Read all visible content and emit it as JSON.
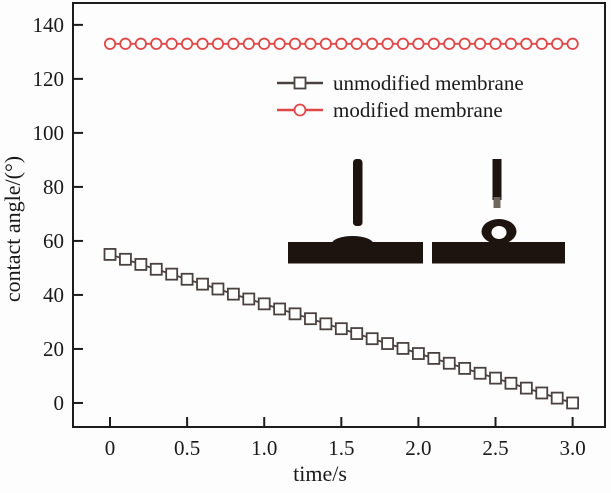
{
  "chart_data": {
    "type": "line",
    "title": "",
    "xlabel": "time/s",
    "ylabel": "contact angle/(°)",
    "xlim": [
      -0.24,
      3.21
    ],
    "ylim": [
      -8.9,
      148.1
    ],
    "grid": false,
    "legend_position": "inside-upper-right",
    "xticks": [
      0,
      0.5,
      1.0,
      1.5,
      2.0,
      2.5,
      3.0
    ],
    "xtick_labels": [
      "0",
      "0.5",
      "1.0",
      "1.5",
      "2.0",
      "2.5",
      "3.0"
    ],
    "yticks": [
      0,
      20,
      40,
      60,
      80,
      100,
      120,
      140
    ],
    "ytick_labels": [
      "0",
      "20",
      "40",
      "60",
      "80",
      "100",
      "120",
      "140"
    ],
    "x": [
      0.0,
      0.1,
      0.2,
      0.3,
      0.4,
      0.5,
      0.6,
      0.7,
      0.8,
      0.9,
      1.0,
      1.1,
      1.2,
      1.3,
      1.4,
      1.5,
      1.6,
      1.7,
      1.8,
      1.9,
      2.0,
      2.1,
      2.2,
      2.3,
      2.4,
      2.5,
      2.6,
      2.7,
      2.8,
      2.9,
      3.0
    ],
    "series": [
      {
        "name": "unmodified membrane",
        "marker": "square",
        "color": "#4a4240",
        "values": [
          55.0,
          53.2,
          51.3,
          49.5,
          47.7,
          45.8,
          44.0,
          42.2,
          40.3,
          38.5,
          36.7,
          34.8,
          33.0,
          31.2,
          29.3,
          27.5,
          25.7,
          23.8,
          22.0,
          20.2,
          18.3,
          16.5,
          14.7,
          12.8,
          11.0,
          9.2,
          7.3,
          5.5,
          3.7,
          1.8,
          0.0
        ]
      },
      {
        "name": "modified membrane",
        "marker": "circle",
        "color": "#e04848",
        "values": [
          133,
          133,
          133,
          133,
          133,
          133,
          133,
          133,
          133,
          133,
          133,
          133,
          133,
          133,
          133,
          133,
          133,
          133,
          133,
          133,
          133,
          133,
          133,
          133,
          133,
          133,
          133,
          133,
          133,
          133,
          133
        ]
      }
    ],
    "insets": [
      {
        "id": "sessile-drop-photo-unmodified",
        "description": "needle with flat spread droplet on membrane"
      },
      {
        "id": "sessile-drop-photo-modified",
        "description": "needle with spherical droplet on membrane"
      }
    ],
    "colors": {
      "axis": "#1c1c1c",
      "unmodified_series": "#4a4240",
      "modified_series": "#e04848",
      "inset_ink": "#1d1410"
    }
  }
}
